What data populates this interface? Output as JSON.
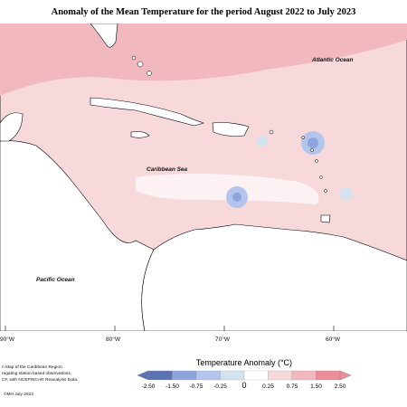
{
  "title": "Anomaly of the Mean Temperature for the period August 2022 to July 2023",
  "labels": {
    "atlantic": "Atlantic Ocean",
    "caribbean": "Caribbean Sea",
    "pacific": "Pacific Ocean"
  },
  "longitude_ticks": [
    "90°W",
    "80°W",
    "70°W",
    "60°W"
  ],
  "notes": [
    "n Map of the Caribbean Region",
    "regating station based observations,",
    "CF, with NCEP/NCAR Reanalysis Data."
  ],
  "credit": "©MH July 2023",
  "legend": {
    "title": "Temperature Anomaly (°C)",
    "labels": [
      "-2.50",
      "-1.50",
      "-0.75",
      "-0.25",
      "0",
      "0.25",
      "0.75",
      "1.50",
      "2.50"
    ],
    "colors": [
      "#5a73b3",
      "#8fa3dc",
      "#b3c5ea",
      "#d3e3ee",
      "#ffffff",
      "#f7d9dc",
      "#f1b9bf",
      "#ec8c96"
    ]
  }
}
